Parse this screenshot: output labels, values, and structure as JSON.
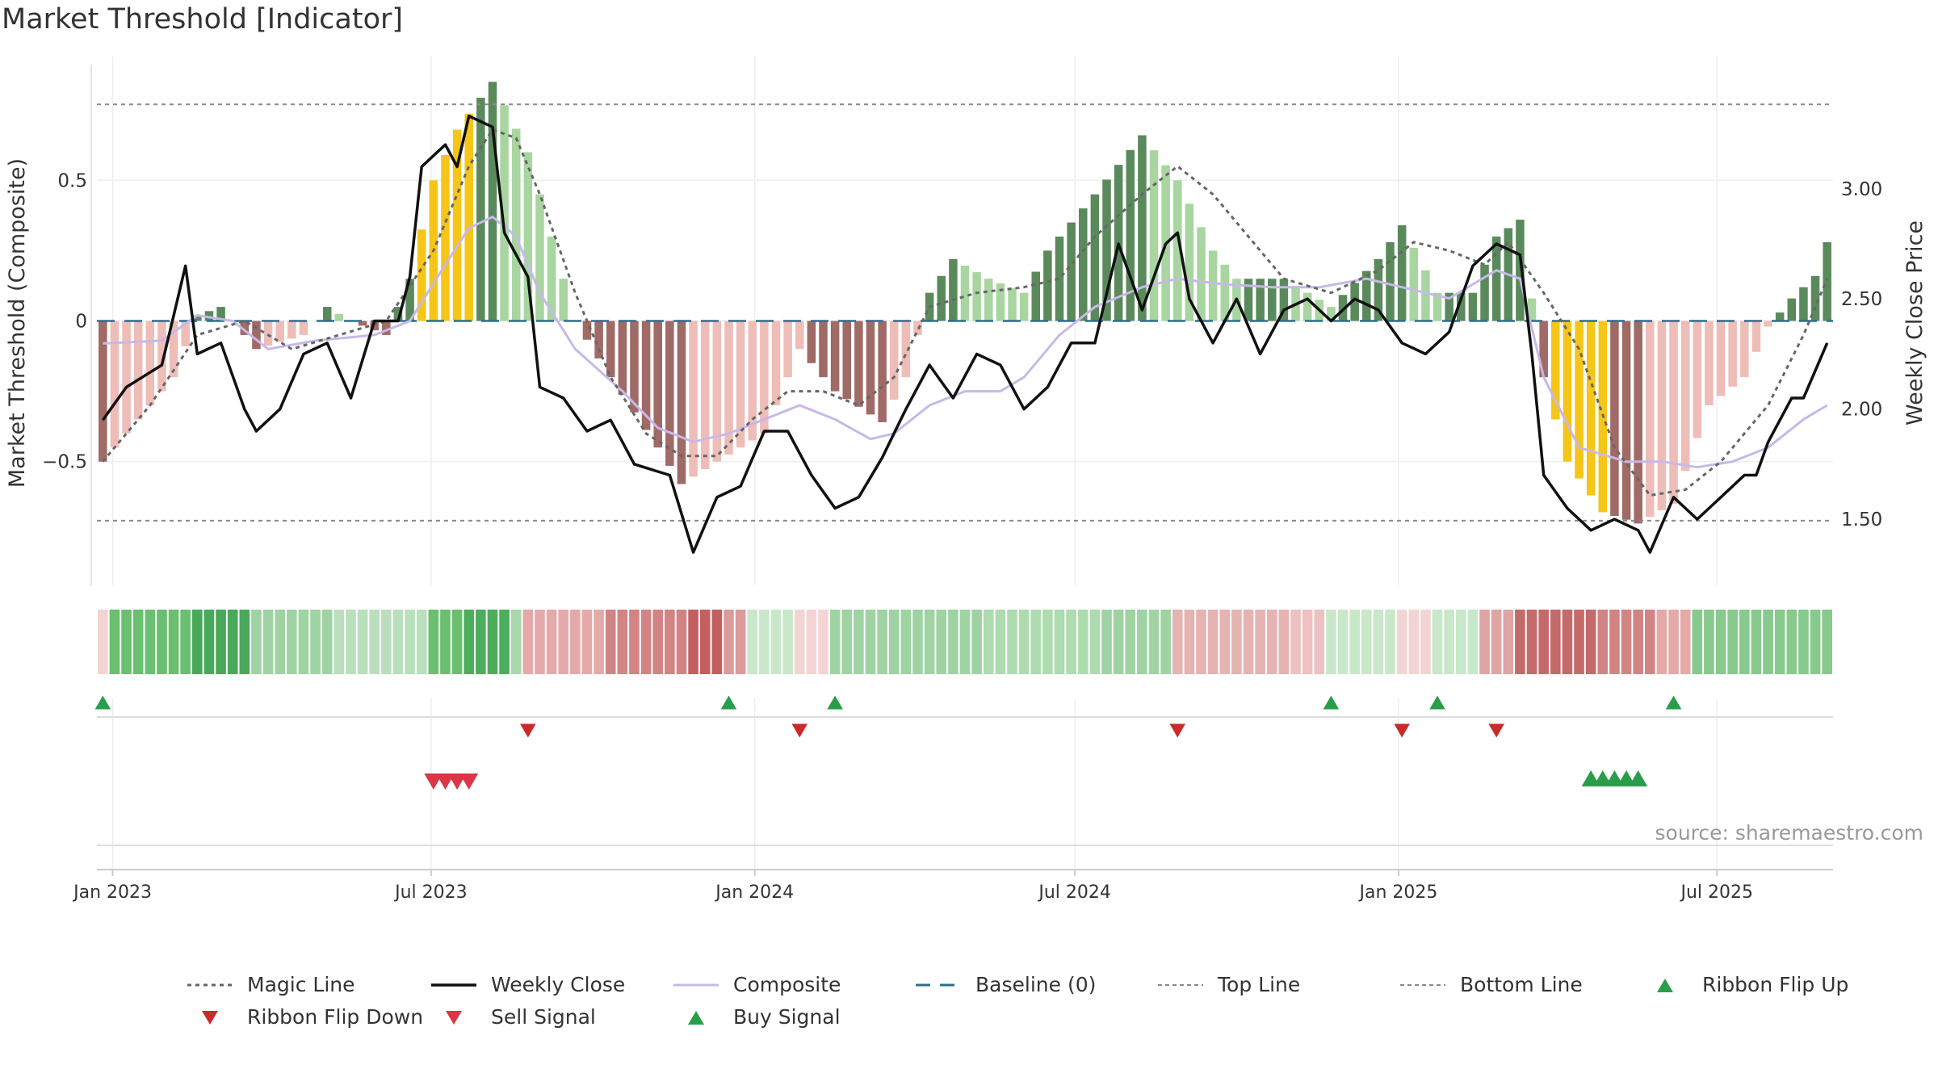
{
  "chart_data": {
    "type": "bar",
    "title": "Market Threshold [Indicator]",
    "ylabel_left": "Market Threshold (Composite)",
    "ylabel_right": "Weekly Close Price",
    "source": "source: sharemaestro.com",
    "x_start": "2022-12-23",
    "x_end": "2025-09-05",
    "x_ticks": [
      "Jan 2023",
      "Jul 2023",
      "Jan 2024",
      "Jul 2024",
      "Jan 2025",
      "Jul 2025"
    ],
    "x_tick_dates": [
      "2023-01-01",
      "2023-07-01",
      "2024-01-01",
      "2024-07-01",
      "2025-01-01",
      "2025-07-01"
    ],
    "y_left_ticks": [
      0.5,
      0,
      -0.5
    ],
    "y_left_tick_labels": [
      "0.5",
      "0",
      "−0.5"
    ],
    "y_left_range": [
      -0.94,
      0.94
    ],
    "y_right_ticks": [
      3.0,
      2.5,
      2.0,
      1.5
    ],
    "y_right_tick_labels": [
      "3.00",
      "2.50",
      "2.00",
      "1.50"
    ],
    "y_right_range": [
      1.2,
      3.6
    ],
    "top_line": 0.77,
    "bottom_line": -0.71,
    "baseline": 0,
    "histogram_keyframes": [
      [
        0,
        -0.5
      ],
      [
        3,
        -0.35
      ],
      [
        6,
        -0.2
      ],
      [
        8,
        0.02
      ],
      [
        10,
        0.05
      ],
      [
        13,
        -0.1
      ],
      [
        17,
        -0.05
      ],
      [
        19,
        0.05
      ],
      [
        21,
        0.0
      ],
      [
        24,
        -0.05
      ],
      [
        26,
        0.15
      ],
      [
        28,
        0.5
      ],
      [
        30,
        0.68
      ],
      [
        33,
        0.85
      ],
      [
        36,
        0.6
      ],
      [
        38,
        0.3
      ],
      [
        40,
        0.0
      ],
      [
        43,
        -0.2
      ],
      [
        47,
        -0.45
      ],
      [
        49,
        -0.58
      ],
      [
        52,
        -0.5
      ],
      [
        56,
        -0.4
      ],
      [
        59,
        -0.1
      ],
      [
        62,
        -0.25
      ],
      [
        66,
        -0.36
      ],
      [
        68,
        -0.2
      ],
      [
        70,
        0.1
      ],
      [
        72,
        0.22
      ],
      [
        75,
        0.15
      ],
      [
        78,
        0.1
      ],
      [
        80,
        0.25
      ],
      [
        84,
        0.45
      ],
      [
        88,
        0.66
      ],
      [
        91,
        0.5
      ],
      [
        94,
        0.25
      ],
      [
        96,
        0.15
      ],
      [
        100,
        0.15
      ],
      [
        104,
        0.05
      ],
      [
        108,
        0.22
      ],
      [
        110,
        0.34
      ],
      [
        113,
        0.1
      ],
      [
        116,
        0.1
      ],
      [
        118,
        0.3
      ],
      [
        120,
        0.36
      ],
      [
        122,
        -0.2
      ],
      [
        124,
        -0.5
      ],
      [
        127,
        -0.68
      ],
      [
        130,
        -0.72
      ],
      [
        133,
        -0.65
      ],
      [
        136,
        -0.3
      ],
      [
        139,
        -0.2
      ],
      [
        141,
        -0.02
      ],
      [
        143,
        0.08
      ],
      [
        145,
        0.16
      ],
      [
        146,
        0.28
      ]
    ],
    "histogram_gold_ranges": [
      [
        27,
        31
      ],
      [
        123,
        127
      ]
    ],
    "weekly_close_keyframes": [
      [
        0,
        1.95
      ],
      [
        2,
        2.1
      ],
      [
        5,
        2.2
      ],
      [
        7,
        2.65
      ],
      [
        8,
        2.25
      ],
      [
        10,
        2.3
      ],
      [
        12,
        2.0
      ],
      [
        13,
        1.9
      ],
      [
        15,
        2.0
      ],
      [
        17,
        2.25
      ],
      [
        19,
        2.3
      ],
      [
        21,
        2.05
      ],
      [
        23,
        2.4
      ],
      [
        25,
        2.4
      ],
      [
        26,
        2.6
      ],
      [
        27,
        3.1
      ],
      [
        29,
        3.2
      ],
      [
        30,
        3.1
      ],
      [
        31,
        3.33
      ],
      [
        33,
        3.28
      ],
      [
        34,
        2.8
      ],
      [
        36,
        2.6
      ],
      [
        37,
        2.1
      ],
      [
        39,
        2.05
      ],
      [
        41,
        1.9
      ],
      [
        43,
        1.95
      ],
      [
        45,
        1.75
      ],
      [
        48,
        1.7
      ],
      [
        50,
        1.35
      ],
      [
        52,
        1.6
      ],
      [
        54,
        1.65
      ],
      [
        56,
        1.9
      ],
      [
        58,
        1.9
      ],
      [
        60,
        1.7
      ],
      [
        62,
        1.55
      ],
      [
        64,
        1.6
      ],
      [
        66,
        1.78
      ],
      [
        68,
        2.0
      ],
      [
        70,
        2.2
      ],
      [
        72,
        2.05
      ],
      [
        74,
        2.25
      ],
      [
        76,
        2.2
      ],
      [
        78,
        2.0
      ],
      [
        80,
        2.1
      ],
      [
        82,
        2.3
      ],
      [
        84,
        2.3
      ],
      [
        86,
        2.75
      ],
      [
        88,
        2.45
      ],
      [
        90,
        2.75
      ],
      [
        91,
        2.8
      ],
      [
        92,
        2.5
      ],
      [
        94,
        2.3
      ],
      [
        96,
        2.5
      ],
      [
        98,
        2.25
      ],
      [
        100,
        2.45
      ],
      [
        102,
        2.5
      ],
      [
        104,
        2.4
      ],
      [
        106,
        2.5
      ],
      [
        108,
        2.45
      ],
      [
        110,
        2.3
      ],
      [
        112,
        2.25
      ],
      [
        114,
        2.35
      ],
      [
        116,
        2.65
      ],
      [
        118,
        2.75
      ],
      [
        120,
        2.7
      ],
      [
        121,
        2.25
      ],
      [
        122,
        1.7
      ],
      [
        124,
        1.55
      ],
      [
        126,
        1.45
      ],
      [
        128,
        1.5
      ],
      [
        130,
        1.45
      ],
      [
        131,
        1.35
      ],
      [
        133,
        1.6
      ],
      [
        135,
        1.5
      ],
      [
        137,
        1.6
      ],
      [
        139,
        1.7
      ],
      [
        140,
        1.7
      ],
      [
        141,
        1.85
      ],
      [
        143,
        2.05
      ],
      [
        144,
        2.05
      ],
      [
        146,
        2.3
      ]
    ],
    "magic_line_keyframes": [
      [
        0,
        -0.5
      ],
      [
        4,
        -0.3
      ],
      [
        8,
        -0.05
      ],
      [
        12,
        0.0
      ],
      [
        16,
        -0.1
      ],
      [
        20,
        -0.05
      ],
      [
        24,
        0.0
      ],
      [
        28,
        0.25
      ],
      [
        31,
        0.55
      ],
      [
        33,
        0.68
      ],
      [
        35,
        0.65
      ],
      [
        37,
        0.45
      ],
      [
        40,
        0.1
      ],
      [
        43,
        -0.2
      ],
      [
        46,
        -0.4
      ],
      [
        49,
        -0.48
      ],
      [
        52,
        -0.48
      ],
      [
        55,
        -0.35
      ],
      [
        58,
        -0.25
      ],
      [
        61,
        -0.25
      ],
      [
        64,
        -0.3
      ],
      [
        67,
        -0.2
      ],
      [
        70,
        0.05
      ],
      [
        74,
        0.1
      ],
      [
        78,
        0.12
      ],
      [
        81,
        0.15
      ],
      [
        84,
        0.3
      ],
      [
        88,
        0.45
      ],
      [
        91,
        0.55
      ],
      [
        94,
        0.45
      ],
      [
        97,
        0.3
      ],
      [
        100,
        0.15
      ],
      [
        104,
        0.1
      ],
      [
        108,
        0.18
      ],
      [
        111,
        0.28
      ],
      [
        114,
        0.25
      ],
      [
        117,
        0.2
      ],
      [
        119,
        0.28
      ],
      [
        122,
        0.1
      ],
      [
        125,
        -0.1
      ],
      [
        128,
        -0.45
      ],
      [
        131,
        -0.62
      ],
      [
        134,
        -0.6
      ],
      [
        137,
        -0.5
      ],
      [
        141,
        -0.3
      ],
      [
        144,
        -0.05
      ],
      [
        146,
        0.15
      ]
    ],
    "composite_keyframes": [
      [
        0,
        -0.08
      ],
      [
        5,
        -0.07
      ],
      [
        8,
        0.02
      ],
      [
        11,
        0.0
      ],
      [
        14,
        -0.1
      ],
      [
        18,
        -0.07
      ],
      [
        23,
        -0.05
      ],
      [
        26,
        0.0
      ],
      [
        29,
        0.2
      ],
      [
        31,
        0.33
      ],
      [
        33,
        0.37
      ],
      [
        35,
        0.3
      ],
      [
        37,
        0.1
      ],
      [
        40,
        -0.1
      ],
      [
        44,
        -0.25
      ],
      [
        47,
        -0.38
      ],
      [
        50,
        -0.43
      ],
      [
        53,
        -0.4
      ],
      [
        56,
        -0.35
      ],
      [
        59,
        -0.3
      ],
      [
        62,
        -0.35
      ],
      [
        65,
        -0.42
      ],
      [
        67,
        -0.4
      ],
      [
        70,
        -0.3
      ],
      [
        73,
        -0.25
      ],
      [
        76,
        -0.25
      ],
      [
        78,
        -0.2
      ],
      [
        81,
        -0.05
      ],
      [
        84,
        0.05
      ],
      [
        88,
        0.12
      ],
      [
        91,
        0.15
      ],
      [
        95,
        0.13
      ],
      [
        99,
        0.12
      ],
      [
        103,
        0.12
      ],
      [
        107,
        0.15
      ],
      [
        110,
        0.12
      ],
      [
        114,
        0.08
      ],
      [
        118,
        0.18
      ],
      [
        120,
        0.15
      ],
      [
        122,
        -0.2
      ],
      [
        125,
        -0.45
      ],
      [
        129,
        -0.5
      ],
      [
        132,
        -0.5
      ],
      [
        135,
        -0.52
      ],
      [
        138,
        -0.5
      ],
      [
        141,
        -0.45
      ],
      [
        144,
        -0.35
      ],
      [
        146,
        -0.3
      ]
    ],
    "ribbon_ranges": [
      [
        0,
        1,
        "#f3d4d4"
      ],
      [
        1,
        8,
        "#6abf70"
      ],
      [
        8,
        13,
        "#48a95a"
      ],
      [
        13,
        20,
        "#9fd3a3"
      ],
      [
        20,
        28,
        "#b9dfbc"
      ],
      [
        28,
        31,
        "#6abf70"
      ],
      [
        31,
        35,
        "#4cae5c"
      ],
      [
        35,
        36,
        "#a8d8ab"
      ],
      [
        36,
        43,
        "#e4aaaa"
      ],
      [
        43,
        50,
        "#d28484"
      ],
      [
        50,
        53,
        "#c35f5f"
      ],
      [
        53,
        55,
        "#dc9b9b"
      ],
      [
        55,
        59,
        "#c8e8c9"
      ],
      [
        59,
        62,
        "#f3d4d4"
      ],
      [
        62,
        75,
        "#9fd3a3"
      ],
      [
        75,
        85,
        "#aedbaf"
      ],
      [
        85,
        91,
        "#9fd3a3"
      ],
      [
        91,
        101,
        "#e6b3b3"
      ],
      [
        101,
        104,
        "#ecc1c1"
      ],
      [
        104,
        110,
        "#c8e8c9"
      ],
      [
        110,
        113,
        "#f3d4d4"
      ],
      [
        113,
        117,
        "#c8e8c9"
      ],
      [
        117,
        120,
        "#dfa4a4"
      ],
      [
        120,
        127,
        "#c56a6a"
      ],
      [
        127,
        132,
        "#d28484"
      ],
      [
        132,
        135,
        "#e4aaaa"
      ],
      [
        135,
        147,
        "#88c98d"
      ]
    ],
    "buy_signals": [
      126,
      127,
      128,
      129,
      130
    ],
    "sell_signals": [
      28,
      29,
      30,
      31
    ],
    "ribbon_flip_up": [
      0,
      53,
      62,
      104,
      113,
      133
    ],
    "ribbon_flip_down": [
      36,
      59,
      91,
      110,
      118
    ],
    "legend": [
      {
        "key": "magic",
        "label": "Magic Line"
      },
      {
        "key": "close",
        "label": "Weekly Close"
      },
      {
        "key": "composite",
        "label": "Composite"
      },
      {
        "key": "baseline",
        "label": "Baseline (0)"
      },
      {
        "key": "top",
        "label": "Top Line"
      },
      {
        "key": "bottom",
        "label": "Bottom Line"
      },
      {
        "key": "flipup",
        "label": "Ribbon Flip Up"
      },
      {
        "key": "flipdown",
        "label": "Ribbon Flip Down"
      },
      {
        "key": "sell",
        "label": "Sell Signal"
      },
      {
        "key": "buy",
        "label": "Buy Signal"
      }
    ],
    "colors": {
      "pos_dark": "#5a8a5c",
      "pos_light": "#a8d5a0",
      "neg_dark": "#a06a66",
      "neg_light": "#eebdb8",
      "gold": "#f5c518",
      "close": "#111111",
      "magic": "#666666",
      "composite": "#c8b8e8",
      "baseline": "#2e6e8e",
      "threshold": "#8a8a8a",
      "buy": "#2a9d4a",
      "sell": "#dc3545",
      "flip_up": "#2a9d4a",
      "flip_down": "#cc2a2a"
    }
  }
}
